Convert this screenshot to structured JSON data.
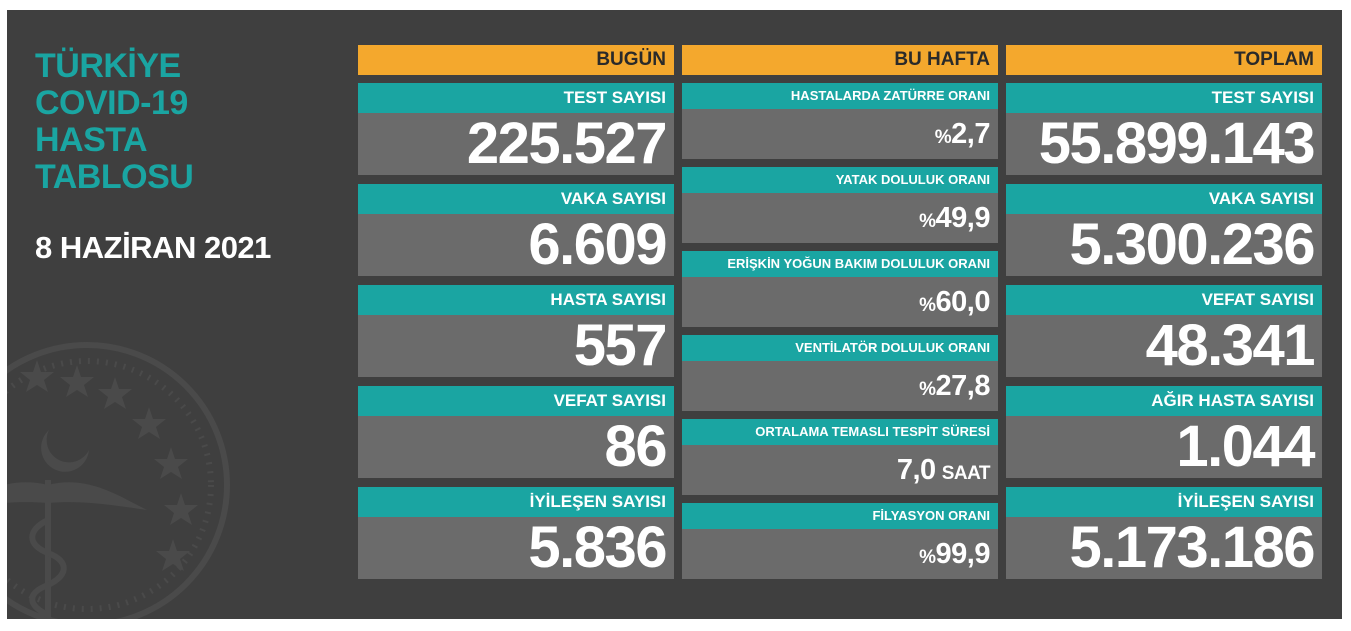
{
  "sidebar": {
    "title": "TÜRKİYE\nCOVID-19\nHASTA\nTABLOSU",
    "date": "8 HAZİRAN 2021"
  },
  "today": {
    "header": "BUGÜN",
    "items": [
      {
        "label": "TEST SAYISI",
        "value": "225.527"
      },
      {
        "label": "VAKA SAYISI",
        "value": "6.609"
      },
      {
        "label": "HASTA SAYISI",
        "value": "557"
      },
      {
        "label": "VEFAT SAYISI",
        "value": "86"
      },
      {
        "label": "İYİLEŞEN SAYISI",
        "value": "5.836"
      }
    ]
  },
  "week": {
    "header": "BU HAFTA",
    "items": [
      {
        "label": "HASTALARDA ZATÜRRE ORANI",
        "prefix": "%",
        "value": "2,7",
        "unit": ""
      },
      {
        "label": "YATAK DOLULUK ORANI",
        "prefix": "%",
        "value": "49,9",
        "unit": ""
      },
      {
        "label": "ERİŞKİN YOĞUN BAKIM DOLULUK ORANI",
        "prefix": "%",
        "value": "60,0",
        "unit": ""
      },
      {
        "label": "VENTİLATÖR DOLULUK ORANI",
        "prefix": "%",
        "value": "27,8",
        "unit": ""
      },
      {
        "label": "ORTALAMA TEMASLI TESPİT SÜRESİ",
        "prefix": "",
        "value": "7,0",
        "unit": "SAAT"
      },
      {
        "label": "FİLYASYON ORANI",
        "prefix": "%",
        "value": "99,9",
        "unit": ""
      }
    ]
  },
  "total": {
    "header": "TOPLAM",
    "items": [
      {
        "label": "TEST SAYISI",
        "value": "55.899.143"
      },
      {
        "label": "VAKA SAYISI",
        "value": "5.300.236"
      },
      {
        "label": "VEFAT SAYISI",
        "value": "48.341"
      },
      {
        "label": "AĞIR HASTA SAYISI",
        "value": "1.044"
      },
      {
        "label": "İYİLEŞEN SAYISI",
        "value": "5.173.186"
      }
    ]
  },
  "colors": {
    "background": "#3f3f3f",
    "header": "#f4a82d",
    "label": "#1aa5a2",
    "value": "#6b6b6b"
  }
}
